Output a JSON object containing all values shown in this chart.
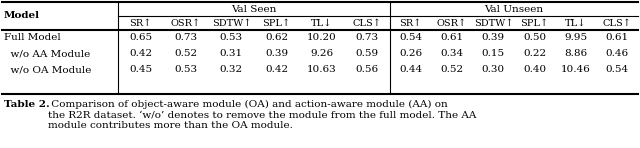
{
  "header_group1": "Val Seen",
  "header_group2": "Val Unseen",
  "col_headers": [
    "SR↑",
    "OSR↑",
    "SDTW↑",
    "SPL↑",
    "TL↓",
    "CLS↑",
    "SR↑",
    "OSR↑",
    "SDTW↑",
    "SPL↑",
    "TL↓",
    "CLS↑"
  ],
  "row_labels": [
    "Full Model",
    "  w/o AA Module",
    "  w/o OA Module"
  ],
  "data": [
    [
      "0.65",
      "0.73",
      "0.53",
      "0.62",
      "10.20",
      "0.73",
      "0.54",
      "0.61",
      "0.39",
      "0.50",
      "9.95",
      "0.61"
    ],
    [
      "0.42",
      "0.52",
      "0.31",
      "0.39",
      "9.26",
      "0.59",
      "0.26",
      "0.34",
      "0.15",
      "0.22",
      "8.86",
      "0.46"
    ],
    [
      "0.45",
      "0.53",
      "0.32",
      "0.42",
      "10.63",
      "0.56",
      "0.44",
      "0.52",
      "0.30",
      "0.40",
      "10.46",
      "0.54"
    ]
  ],
  "caption_bold": "Table 2.",
  "caption_normal": " Comparison of object-aware module (OA) and action-aware module (AA) on\nthe R2R dataset. ‘w/o’ denotes to remove the module from the full model. The AA\nmodule contributes more than the OA module.",
  "figsize": [
    6.4,
    1.48
  ],
  "dpi": 100
}
